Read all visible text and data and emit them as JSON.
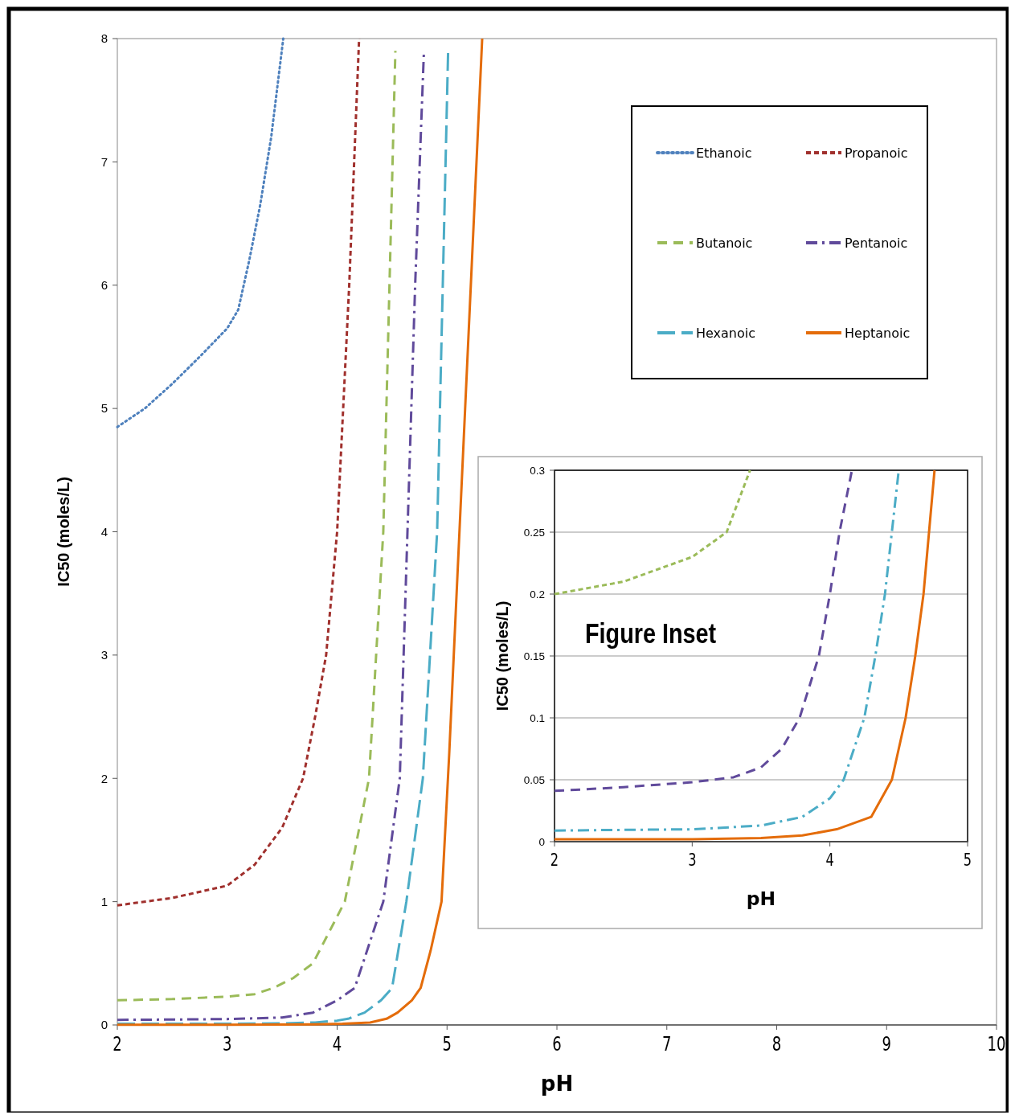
{
  "chart_data": [
    {
      "type": "line",
      "xlabel": "pH",
      "ylabel": "IC50 (moles/L)",
      "xlim": [
        2,
        10
      ],
      "ylim": [
        0,
        8
      ],
      "xticks": [
        2,
        3,
        4,
        5,
        6,
        7,
        8,
        9,
        10
      ],
      "yticks": [
        0,
        1,
        2,
        3,
        4,
        5,
        6,
        7,
        8
      ],
      "grid": false,
      "legend": "top right",
      "marker": "none",
      "series": [
        {
          "name": "Ethanoic",
          "color": "#4f81bd",
          "line_style": "dotted",
          "x": [
            2,
            2.25,
            2.5,
            2.75,
            3,
            3.1,
            3.2,
            3.3,
            3.4,
            3.51
          ],
          "values": [
            4.85,
            5.0,
            5.2,
            5.42,
            5.65,
            5.8,
            6.2,
            6.65,
            7.2,
            8
          ]
        },
        {
          "name": "Propanoic",
          "color": "#a0302d",
          "line_style": "dashed",
          "x": [
            2,
            2.5,
            3,
            3.25,
            3.5,
            3.69,
            3.8,
            3.9,
            4.0,
            4.11,
            4.2
          ],
          "values": [
            0.97,
            1.03,
            1.13,
            1.3,
            1.6,
            2.0,
            2.5,
            3.0,
            4.0,
            6.0,
            8.0
          ]
        },
        {
          "name": "Butanoic",
          "color": "#9bbb59",
          "line_style": "dashed",
          "x": [
            2,
            2.5,
            3,
            3.25,
            3.42,
            3.6,
            3.78,
            4.07,
            4.29,
            4.42,
            4.53
          ],
          "values": [
            0.2,
            0.21,
            0.23,
            0.25,
            0.3,
            0.38,
            0.5,
            1.0,
            2.0,
            4.0,
            7.9
          ]
        },
        {
          "name": "Pentanoic",
          "color": "#604a9b",
          "line_style": "dashed",
          "x": [
            2,
            2.5,
            3,
            3.5,
            3.78,
            4.0,
            4.16,
            4.42,
            4.57,
            4.71,
            4.79
          ],
          "values": [
            0.041,
            0.044,
            0.048,
            0.06,
            0.1,
            0.2,
            0.3,
            1.0,
            2.0,
            6.0,
            7.9
          ]
        },
        {
          "name": "Hexanoic",
          "color": "#4bacc6",
          "line_style": "dashed",
          "x": [
            2,
            3,
            3.5,
            3.8,
            4.0,
            4.1,
            4.25,
            4.4,
            4.5,
            4.63,
            4.78,
            4.91,
            5.01
          ],
          "values": [
            0.009,
            0.01,
            0.013,
            0.02,
            0.035,
            0.05,
            0.1,
            0.2,
            0.3,
            1.0,
            2.0,
            4.0,
            7.9
          ]
        },
        {
          "name": "Heptanoic",
          "color": "#e46c0a",
          "line_style": "solid",
          "x": [
            2,
            3,
            3.5,
            3.8,
            4.05,
            4.3,
            4.45,
            4.55,
            4.68,
            4.76,
            4.85,
            4.95,
            5.02,
            5.32
          ],
          "values": [
            0.002,
            0.002,
            0.003,
            0.005,
            0.01,
            0.02,
            0.05,
            0.1,
            0.2,
            0.3,
            0.6,
            1.0,
            2.2,
            8
          ]
        }
      ]
    },
    {
      "type": "line",
      "xlabel": "pH",
      "ylabel": "IC50 (moles/L)",
      "annotations": [
        "Figure Inset"
      ],
      "xlim": [
        2,
        5
      ],
      "ylim": [
        0,
        0.3
      ],
      "xticks": [
        2,
        3,
        4,
        5
      ],
      "yticks": [
        0,
        0.05,
        0.1,
        0.15,
        0.2,
        0.25,
        0.3
      ],
      "grid": "y",
      "legend": false,
      "marker": "none",
      "series": [
        {
          "color": "#9bbb59",
          "line_style": "dashed",
          "x": [
            2,
            2.5,
            3,
            3.25,
            3.42
          ],
          "values": [
            0.2,
            0.21,
            0.23,
            0.25,
            0.3
          ]
        },
        {
          "color": "#604a9b",
          "line_style": "dashed",
          "x": [
            2,
            2.5,
            3,
            3.3,
            3.5,
            3.65,
            3.78,
            3.92,
            4.0,
            4.07,
            4.16
          ],
          "values": [
            0.041,
            0.044,
            0.048,
            0.052,
            0.06,
            0.075,
            0.1,
            0.15,
            0.2,
            0.25,
            0.3
          ]
        },
        {
          "color": "#4bacc6",
          "line_style": "dashed",
          "x": [
            2,
            3,
            3.5,
            3.8,
            4.0,
            4.1,
            4.25,
            4.33,
            4.4,
            4.5
          ],
          "values": [
            0.009,
            0.01,
            0.013,
            0.02,
            0.035,
            0.05,
            0.1,
            0.15,
            0.2,
            0.3
          ]
        },
        {
          "color": "#e46c0a",
          "line_style": "solid",
          "x": [
            2,
            3,
            3.5,
            3.8,
            4.05,
            4.3,
            4.45,
            4.55,
            4.62,
            4.68,
            4.76
          ],
          "values": [
            0.002,
            0.002,
            0.003,
            0.005,
            0.01,
            0.02,
            0.05,
            0.1,
            0.15,
            0.2,
            0.3
          ]
        }
      ]
    }
  ]
}
